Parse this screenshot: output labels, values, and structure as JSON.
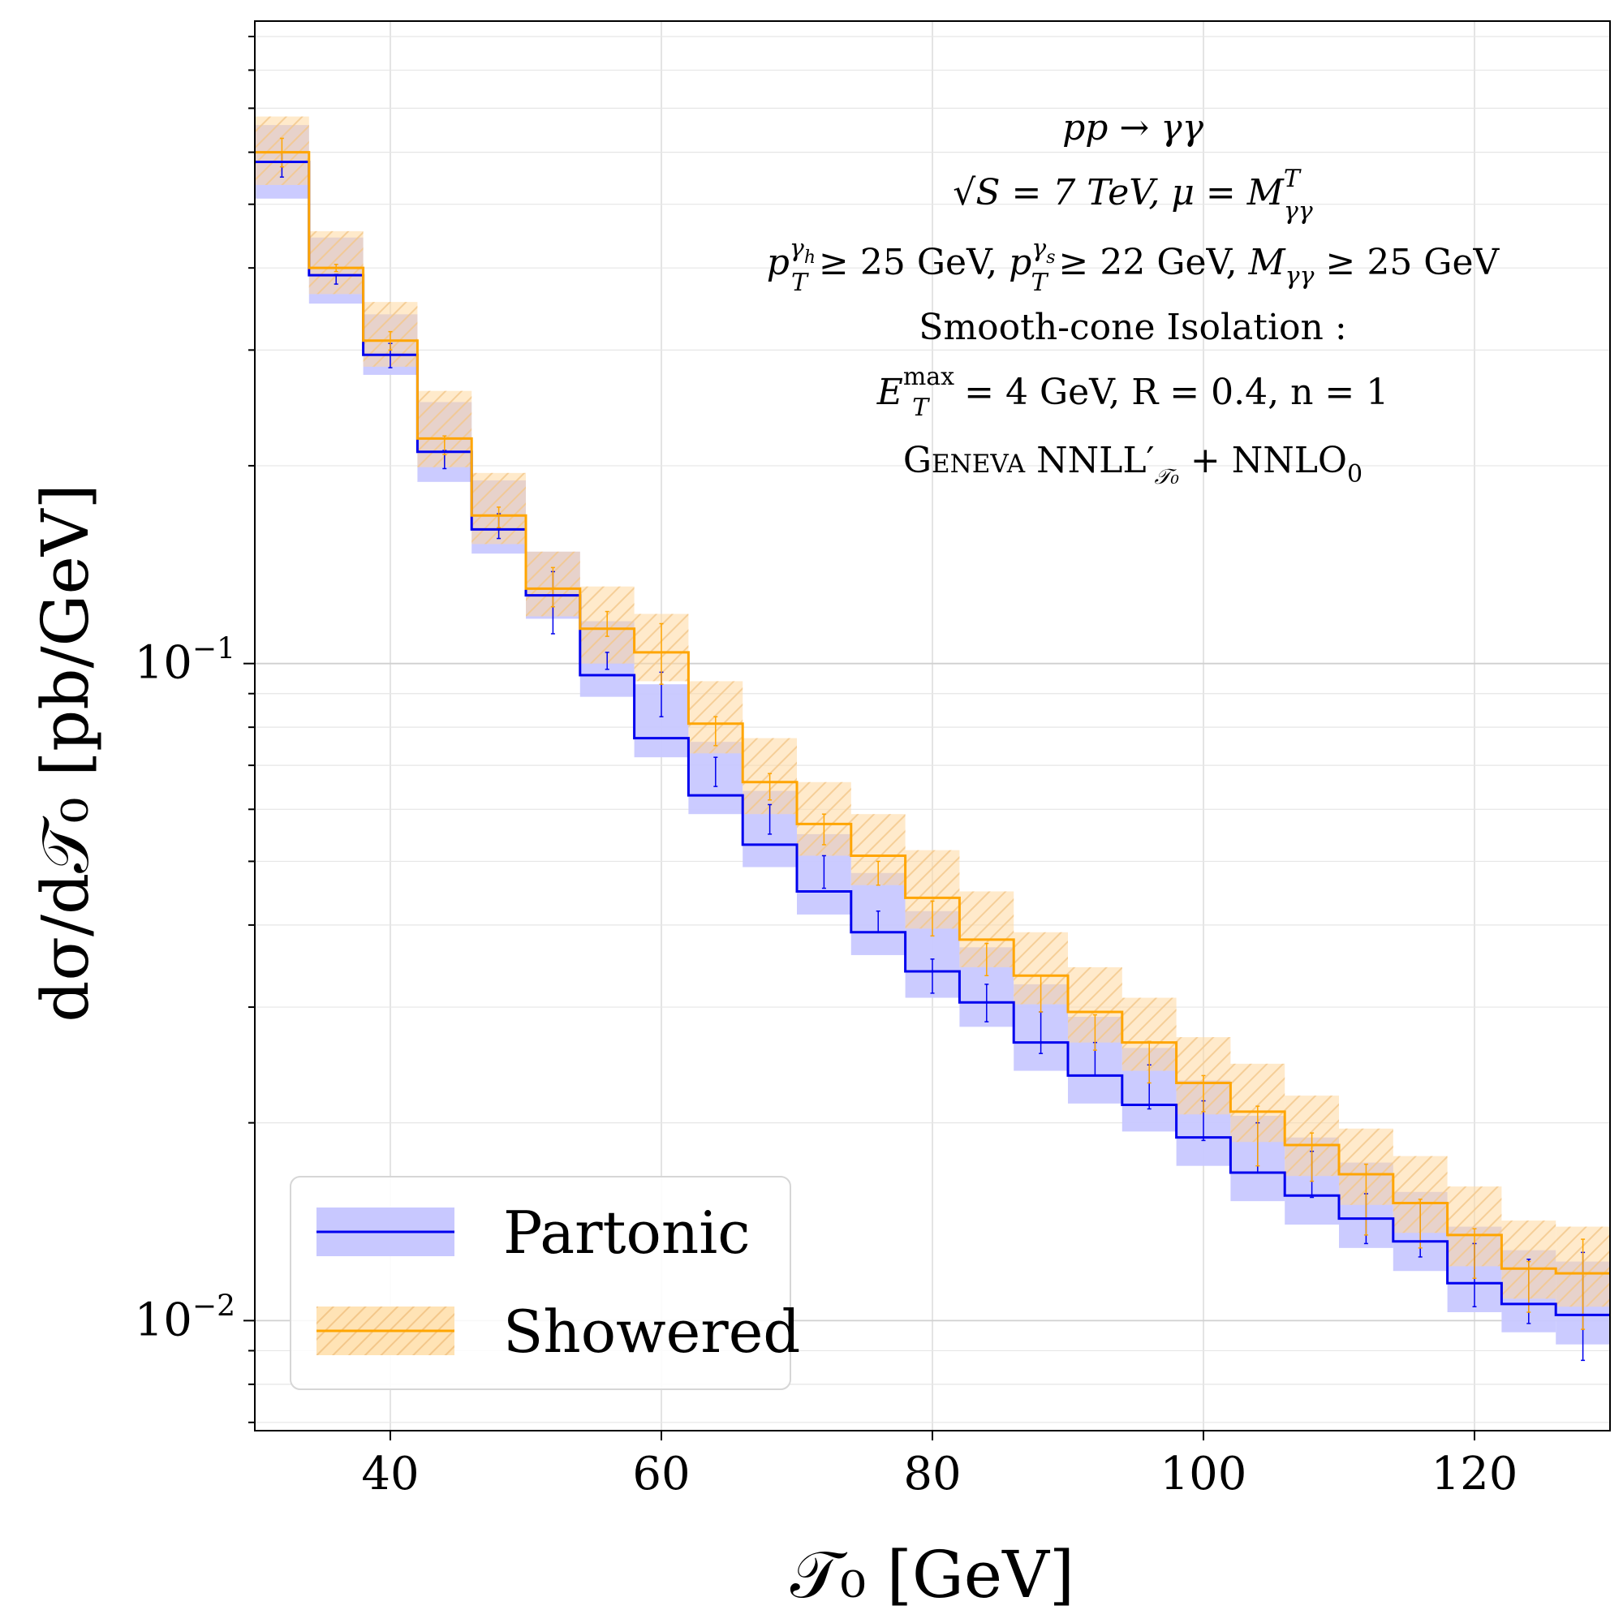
{
  "chart_data": {
    "type": "step-histogram",
    "title": "",
    "xlabel": "𝒯₀   [GeV]",
    "ylabel": "dσ/d𝒯₀   [pb/GeV]",
    "xscale": "linear",
    "yscale": "log",
    "xlim": [
      30,
      130
    ],
    "ylim": [
      0.0068,
      0.95
    ],
    "grid": true,
    "x_ticks": [
      {
        "value": 40,
        "label": "40"
      },
      {
        "value": 60,
        "label": "60"
      },
      {
        "value": 80,
        "label": "80"
      },
      {
        "value": 100,
        "label": "100"
      },
      {
        "value": 120,
        "label": "120"
      }
    ],
    "y_ticks": [
      {
        "value": 0.1,
        "base": "10",
        "exp": "−1"
      },
      {
        "value": 0.01,
        "base": "10",
        "exp": "−2"
      }
    ],
    "bin_edges": [
      30,
      34,
      38,
      42,
      46,
      50,
      54,
      58,
      62,
      66,
      70,
      74,
      78,
      82,
      86,
      90,
      94,
      98,
      102,
      106,
      110,
      114,
      118,
      122,
      126,
      130
    ],
    "series": [
      {
        "name": "Partonic",
        "color": "#0000ee",
        "band_color": "#c8c8ff",
        "values": [
          0.58,
          0.39,
          0.295,
          0.21,
          0.16,
          0.127,
          0.096,
          0.077,
          0.063,
          0.053,
          0.045,
          0.039,
          0.034,
          0.0305,
          0.0265,
          0.0236,
          0.0213,
          0.019,
          0.0168,
          0.0155,
          0.0143,
          0.0132,
          0.0114,
          0.0106,
          0.0102
        ],
        "band_low": [
          0.51,
          0.353,
          0.275,
          0.189,
          0.147,
          0.117,
          0.089,
          0.072,
          0.059,
          0.049,
          0.0415,
          0.036,
          0.031,
          0.028,
          0.024,
          0.0214,
          0.0194,
          0.0172,
          0.0152,
          0.014,
          0.0129,
          0.0119,
          0.0103,
          0.0096,
          0.0092
        ],
        "band_high": [
          0.66,
          0.445,
          0.34,
          0.25,
          0.19,
          0.148,
          0.116,
          0.093,
          0.076,
          0.064,
          0.055,
          0.048,
          0.042,
          0.037,
          0.0325,
          0.029,
          0.026,
          0.0232,
          0.0205,
          0.019,
          0.0174,
          0.0157,
          0.0139,
          0.0128,
          0.0123
        ],
        "err_center": [
          0.57,
          0.385,
          0.295,
          0.205,
          0.162,
          0.124,
          0.101,
          0.09,
          0.068,
          0.058,
          0.048,
          0.0405,
          0.0335,
          0.0305,
          0.0275,
          0.025,
          0.0227,
          0.0202,
          0.0184,
          0.0168,
          0.0144,
          0.0138,
          0.0118,
          0.0111,
          0.0106
        ],
        "err_low": [
          0.55,
          0.378,
          0.282,
          0.198,
          0.155,
          0.111,
          0.098,
          0.083,
          0.065,
          0.055,
          0.0455,
          0.039,
          0.0315,
          0.0285,
          0.0255,
          0.0236,
          0.021,
          0.0188,
          0.0168,
          0.0154,
          0.0131,
          0.0125,
          0.0105,
          0.0099,
          0.0087
        ],
        "err_high": [
          0.6,
          0.391,
          0.307,
          0.211,
          0.169,
          0.138,
          0.104,
          0.097,
          0.072,
          0.061,
          0.051,
          0.042,
          0.0355,
          0.0325,
          0.0295,
          0.0265,
          0.0245,
          0.0216,
          0.02,
          0.0181,
          0.0156,
          0.0151,
          0.0131,
          0.0124,
          0.0127
        ]
      },
      {
        "name": "Showered",
        "color": "#ffa500",
        "band_color": "#ffd9a0",
        "values": [
          0.6,
          0.4,
          0.31,
          0.22,
          0.168,
          0.13,
          0.113,
          0.104,
          0.081,
          0.066,
          0.057,
          0.051,
          0.044,
          0.038,
          0.0335,
          0.0295,
          0.0265,
          0.023,
          0.0208,
          0.0185,
          0.0167,
          0.0151,
          0.0135,
          0.012,
          0.0118
        ],
        "band_low": [
          0.535,
          0.365,
          0.283,
          0.199,
          0.152,
          0.118,
          0.1,
          0.094,
          0.073,
          0.059,
          0.051,
          0.046,
          0.0395,
          0.0345,
          0.0303,
          0.0265,
          0.024,
          0.0206,
          0.0187,
          0.0166,
          0.015,
          0.0136,
          0.0121,
          0.0108,
          0.0105
        ],
        "band_high": [
          0.68,
          0.455,
          0.355,
          0.26,
          0.195,
          0.148,
          0.131,
          0.119,
          0.094,
          0.077,
          0.066,
          0.059,
          0.052,
          0.045,
          0.039,
          0.0345,
          0.031,
          0.027,
          0.0246,
          0.022,
          0.0196,
          0.0178,
          0.016,
          0.0142,
          0.0139
        ],
        "err_center": [
          0.6,
          0.4,
          0.31,
          0.215,
          0.167,
          0.131,
          0.115,
          0.104,
          0.079,
          0.065,
          0.056,
          0.048,
          0.041,
          0.0355,
          0.0315,
          0.0275,
          0.0248,
          0.0222,
          0.0192,
          0.0178,
          0.0154,
          0.0141,
          0.0127,
          0.0113,
          0.0114
        ],
        "err_low": [
          0.57,
          0.395,
          0.3,
          0.208,
          0.161,
          0.122,
          0.11,
          0.093,
          0.075,
          0.062,
          0.053,
          0.046,
          0.0385,
          0.0335,
          0.0295,
          0.0258,
          0.023,
          0.0208,
          0.0172,
          0.0163,
          0.0135,
          0.0129,
          0.0116,
          0.0103,
          0.0097
        ],
        "err_high": [
          0.63,
          0.405,
          0.32,
          0.222,
          0.173,
          0.14,
          0.12,
          0.115,
          0.083,
          0.068,
          0.059,
          0.05,
          0.0435,
          0.0375,
          0.0335,
          0.0292,
          0.0266,
          0.0236,
          0.0212,
          0.0193,
          0.0173,
          0.0153,
          0.0138,
          0.0123,
          0.0133
        ]
      }
    ],
    "legend": {
      "location": "bottom-left",
      "entries": [
        "Partonic",
        "Showered"
      ]
    },
    "annotation": {
      "process": "pp → γγ",
      "energy": "√S = 7 TeV,  μ = M",
      "energy_sup": "T",
      "energy_sub": "γγ",
      "cuts": {
        "p1": "p",
        "p1_sup": "γ",
        "p1_supsub": "h",
        "p1_sub": "T",
        "p1_rest": " ≥ 25 GeV,  ",
        "p2": "p",
        "p2_sup": "γ",
        "p2_supsub": "s",
        "p2_sub": "T",
        "p2_rest": " ≥ 22 GeV,  ",
        "m": "M",
        "m_sub": "γγ",
        "m_rest": " ≥ 25 GeV"
      },
      "isolation": "Smooth-cone Isolation :",
      "iso_params": {
        "e": "E",
        "e_sup": "max",
        "e_sub": "T",
        "e_rest": " = 4 GeV,   R = 0.4,  n = 1"
      },
      "generator": {
        "name": "Geneva",
        "accuracy": "NNLL′",
        "accuracy_sub": "𝒯₀",
        "accuracy_rest": " + NNLO",
        "accuracy_rest_sub": "0"
      }
    }
  }
}
